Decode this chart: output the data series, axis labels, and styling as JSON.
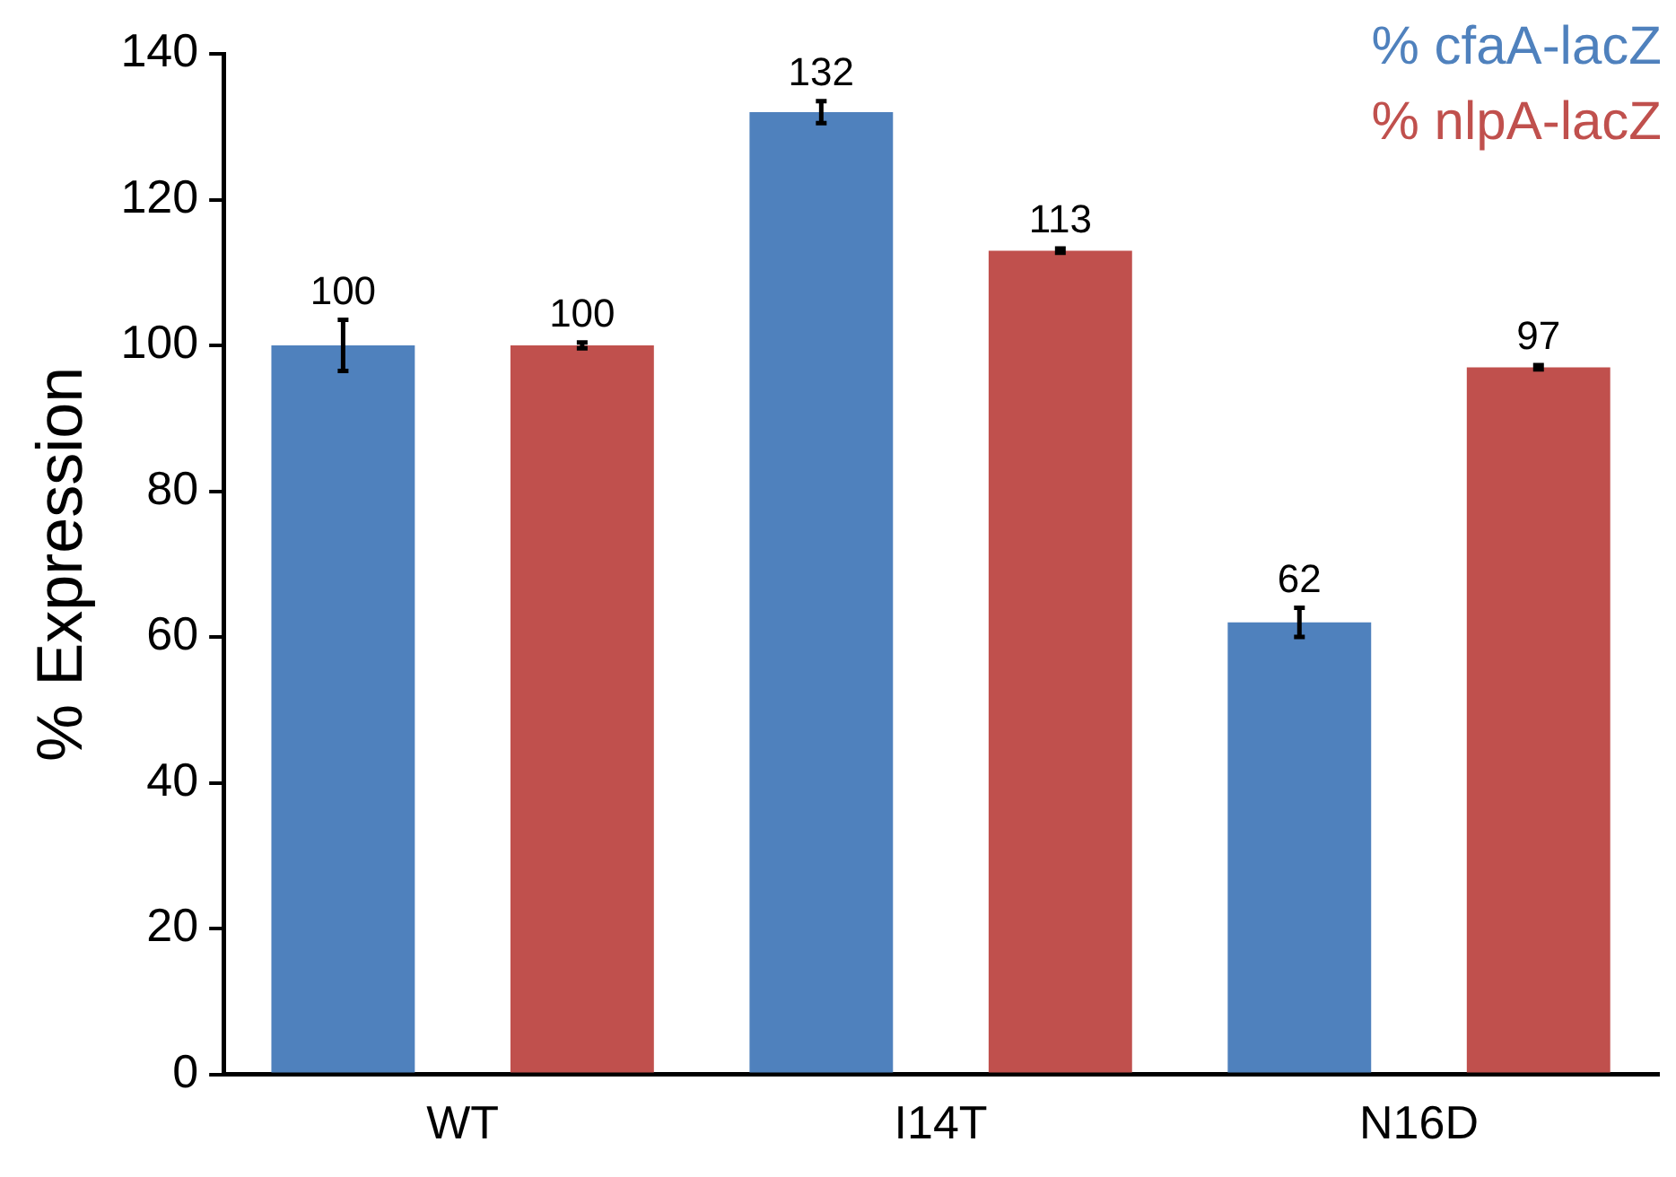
{
  "chart_data": {
    "type": "bar",
    "ylabel": "% Expression",
    "categories": [
      "WT",
      "I14T",
      "N16D"
    ],
    "series": [
      {
        "name": "% cfaA-lacZ",
        "color": "#4f81bd",
        "values": [
          100,
          132,
          62
        ],
        "errors": [
          3.5,
          1.5,
          2
        ]
      },
      {
        "name": "% nlpA-lacZ",
        "color": "#c0504d",
        "values": [
          100,
          113,
          97
        ],
        "errors": [
          0.4,
          0.3,
          0.3
        ]
      }
    ],
    "ylim": [
      0,
      140
    ],
    "yticks": [
      0,
      20,
      40,
      60,
      80,
      100,
      120,
      140
    ],
    "grid": false,
    "legend": "top right",
    "data_labels": true
  }
}
